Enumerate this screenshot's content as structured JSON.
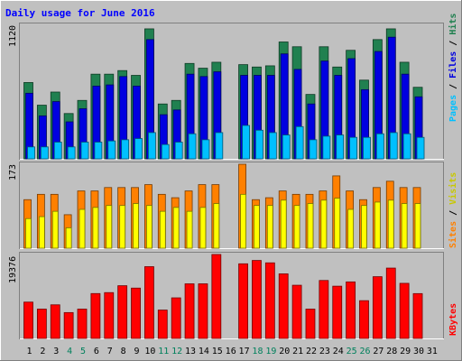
{
  "chart_data": {
    "title": "Daily usage for June 2016",
    "type": "bar",
    "categories": [
      "1",
      "2",
      "3",
      "4",
      "5",
      "6",
      "7",
      "8",
      "9",
      "10",
      "11",
      "12",
      "13",
      "14",
      "15",
      "16",
      "17",
      "18",
      "19",
      "20",
      "21",
      "22",
      "23",
      "24",
      "25",
      "26",
      "27",
      "28",
      "29",
      "30",
      "31"
    ],
    "weekend_days": [
      "4",
      "5",
      "11",
      "12",
      "18",
      "19",
      "25",
      "26"
    ],
    "panels": [
      {
        "name": "hits-files-pages",
        "max_label": "1120",
        "max": 1120,
        "legend": [
          "Pages",
          "Files",
          "Hits"
        ],
        "series": [
          {
            "name": "Hits",
            "color": "#208050",
            "values": [
              640,
              450,
              560,
              380,
              490,
              710,
              710,
              740,
              700,
              1090,
              460,
              490,
              800,
              760,
              810,
              0,
              790,
              770,
              780,
              980,
              940,
              540,
              940,
              770,
              910,
              660,
              1000,
              1090,
              810,
              600,
              0
            ]
          },
          {
            "name": "Files",
            "color": "#0000E0",
            "values": [
              550,
              360,
              480,
              310,
              420,
              610,
              620,
              690,
              610,
              1000,
              370,
              410,
              710,
              690,
              730,
              0,
              700,
              700,
              700,
              880,
              750,
              460,
              820,
              700,
              840,
              580,
              900,
              1020,
              710,
              520,
              0
            ]
          },
          {
            "name": "Pages",
            "color": "#00C0FF",
            "values": [
              100,
              100,
              140,
              100,
              140,
              140,
              150,
              160,
              170,
              220,
              120,
              140,
              210,
              160,
              220,
              0,
              280,
              240,
              220,
              200,
              270,
              160,
              190,
              200,
              180,
              180,
              210,
              220,
              210,
              180,
              0
            ]
          }
        ]
      },
      {
        "name": "sites-visits",
        "max_label": "173",
        "max": 173,
        "legend": [
          "Sites",
          "Visits"
        ],
        "series": [
          {
            "name": "Visits",
            "color": "#FF8000",
            "values": [
              100,
              111,
              111,
              69,
              118,
              118,
              125,
              125,
              125,
              131,
              111,
              104,
              118,
              131,
              131,
              0,
              173,
              100,
              104,
              118,
              111,
              111,
              118,
              149,
              118,
              100,
              125,
              138,
              125,
              125,
              0
            ]
          },
          {
            "name": "Sites",
            "color": "#FFFF00",
            "values": [
              61,
              65,
              76,
              42,
              80,
              84,
              88,
              88,
              92,
              88,
              76,
              84,
              76,
              84,
              92,
              0,
              111,
              88,
              88,
              99,
              88,
              92,
              99,
              103,
              80,
              88,
              95,
              99,
              92,
              92,
              0
            ]
          }
        ]
      },
      {
        "name": "kbytes",
        "max_label": "19376",
        "max": 19376,
        "legend": [
          "KBytes"
        ],
        "series": [
          {
            "name": "KBytes",
            "color": "#FF0000",
            "values": [
              8390,
              6770,
              7760,
              5970,
              6770,
              10360,
              10580,
              12170,
              11620,
              16570,
              6550,
              9370,
              12610,
              12610,
              19380,
              0,
              17230,
              18000,
              17450,
              14910,
              12280,
              6770,
              13380,
              12060,
              13050,
              8720,
              14250,
              16240,
              12720,
              10350,
              0
            ]
          }
        ]
      }
    ]
  }
}
